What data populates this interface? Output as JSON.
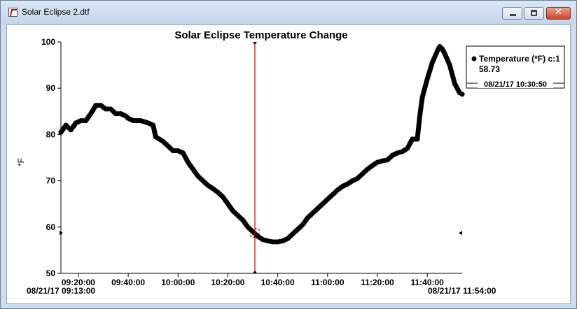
{
  "window": {
    "title": "Solar Eclipse 2.dtf",
    "close_glyph": "✕"
  },
  "chart_data": {
    "type": "line",
    "title": "Solar Eclipse Temperature Change",
    "ylabel": "*F",
    "ylim": [
      50,
      100
    ],
    "yticks": [
      50,
      60,
      70,
      80,
      90,
      100
    ],
    "xlim": [
      "09:13:00",
      "11:54:00"
    ],
    "xticks": [
      "09:20:00",
      "09:40:00",
      "10:00:00",
      "10:20:00",
      "10:40:00",
      "11:00:00",
      "11:20:00",
      "11:40:00"
    ],
    "x_start_label": "08/21/17 09:13:00",
    "x_end_label": "08/21/17 11:54:00",
    "cursor_time": "10:30:50",
    "series": [
      {
        "name": "Temperature (*F) c:1",
        "color": "#000000",
        "marker": "dot",
        "points": [
          [
            "09:13:00",
            80.5
          ],
          [
            "09:15:00",
            82.0
          ],
          [
            "09:17:00",
            81.0
          ],
          [
            "09:19:00",
            82.5
          ],
          [
            "09:21:00",
            83.0
          ],
          [
            "09:23:00",
            83.0
          ],
          [
            "09:25:00",
            84.5
          ],
          [
            "09:27:00",
            86.3
          ],
          [
            "09:29:00",
            86.3
          ],
          [
            "09:31:00",
            85.5
          ],
          [
            "09:33:00",
            85.5
          ],
          [
            "09:35:00",
            84.5
          ],
          [
            "09:37:00",
            84.5
          ],
          [
            "09:39:00",
            84.0
          ],
          [
            "09:40:00",
            83.5
          ],
          [
            "09:42:00",
            83.0
          ],
          [
            "09:45:00",
            83.0
          ],
          [
            "09:48:00",
            82.5
          ],
          [
            "09:50:00",
            82.0
          ],
          [
            "09:51:00",
            79.5
          ],
          [
            "09:54:00",
            78.5
          ],
          [
            "09:56:00",
            77.5
          ],
          [
            "09:58:00",
            76.5
          ],
          [
            "10:00:00",
            76.5
          ],
          [
            "10:02:00",
            76.0
          ],
          [
            "10:04:00",
            74.0
          ],
          [
            "10:06:00",
            72.5
          ],
          [
            "10:08:00",
            71.0
          ],
          [
            "10:10:00",
            70.0
          ],
          [
            "10:12:00",
            69.0
          ],
          [
            "10:14:00",
            68.3
          ],
          [
            "10:16:00",
            67.5
          ],
          [
            "10:18:00",
            66.5
          ],
          [
            "10:20:00",
            65.0
          ],
          [
            "10:22:00",
            63.5
          ],
          [
            "10:24:00",
            62.5
          ],
          [
            "10:26:00",
            61.5
          ],
          [
            "10:28:00",
            60.0
          ],
          [
            "10:30:00",
            59.0
          ],
          [
            "10:32:00",
            58.0
          ],
          [
            "10:34:00",
            57.3
          ],
          [
            "10:36:00",
            57.0
          ],
          [
            "10:38:00",
            56.8
          ],
          [
            "10:40:00",
            56.8
          ],
          [
            "10:42:00",
            57.0
          ],
          [
            "10:44:00",
            57.5
          ],
          [
            "10:46:00",
            58.5
          ],
          [
            "10:48:00",
            59.5
          ],
          [
            "10:50:00",
            60.5
          ],
          [
            "10:52:00",
            62.0
          ],
          [
            "10:54:00",
            63.0
          ],
          [
            "10:56:00",
            64.0
          ],
          [
            "10:58:00",
            65.0
          ],
          [
            "11:00:00",
            66.0
          ],
          [
            "11:02:00",
            67.0
          ],
          [
            "11:04:00",
            68.0
          ],
          [
            "11:06:00",
            68.8
          ],
          [
            "11:08:00",
            69.3
          ],
          [
            "11:10:00",
            70.0
          ],
          [
            "11:12:00",
            70.5
          ],
          [
            "11:14:00",
            71.5
          ],
          [
            "11:16:00",
            72.5
          ],
          [
            "11:18:00",
            73.3
          ],
          [
            "11:20:00",
            74.0
          ],
          [
            "11:22:00",
            74.3
          ],
          [
            "11:24:00",
            74.5
          ],
          [
            "11:26:00",
            75.5
          ],
          [
            "11:28:00",
            76.0
          ],
          [
            "11:30:00",
            76.3
          ],
          [
            "11:32:00",
            77.0
          ],
          [
            "11:34:00",
            79.0
          ],
          [
            "11:36:00",
            79.0
          ],
          [
            "11:37:00",
            84.0
          ],
          [
            "11:38:00",
            88.0
          ],
          [
            "11:40:00",
            92.0
          ],
          [
            "11:42:00",
            95.5
          ],
          [
            "11:44:00",
            98.0
          ],
          [
            "11:45:00",
            99.0
          ],
          [
            "11:46:00",
            98.5
          ],
          [
            "11:47:00",
            97.5
          ],
          [
            "11:49:00",
            95.0
          ],
          [
            "11:51:00",
            91.0
          ],
          [
            "11:53:00",
            89.0
          ],
          [
            "11:54:00",
            88.7
          ]
        ]
      }
    ],
    "legend": {
      "position": "top-right",
      "series_label": "Temperature (*F) c:1",
      "value": "58.73",
      "timestamp": "08/21/17 10:30:50"
    }
  }
}
